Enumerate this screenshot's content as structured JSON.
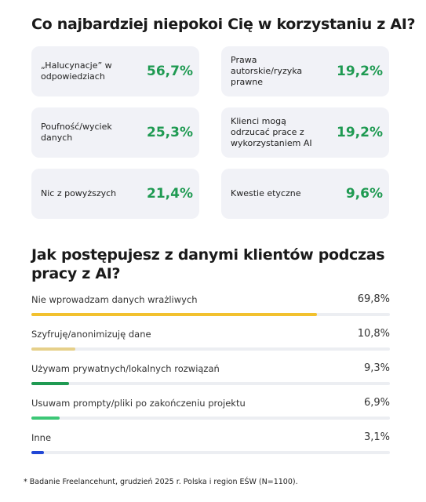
{
  "section1": {
    "title": "Co najbardziej niepokoi Cię w korzystaniu z AI?",
    "cards": [
      {
        "label": "„Halucynacje” w odpowiedziach",
        "value": "56,7%"
      },
      {
        "label": "Prawa autorskie/ryzyka prawne",
        "value": "19,2%"
      },
      {
        "label": "Poufność/wyciek danych",
        "value": "25,3%"
      },
      {
        "label": "Klienci mogą odrzucać prace z wykorzystaniem AI",
        "value": "19,2%"
      },
      {
        "label": "Nic z powyższych",
        "value": "21,4%"
      },
      {
        "label": "Kwestie etyczne",
        "value": "9,6%"
      }
    ]
  },
  "chart_data": {
    "type": "bar",
    "title": "Jak postępujesz z danymi klientów podczas pracy z AI?",
    "categories": [
      "Nie wprowadzam danych wrażliwych",
      "Szyfruję/anonimizuję dane",
      "Używam prywatnych/lokalnych rozwiązań",
      "Usuwam prompty/pliki po zakończeniu projektu",
      "Inne"
    ],
    "values": [
      69.8,
      10.8,
      9.3,
      6.9,
      3.1
    ],
    "value_labels": [
      "69,8%",
      "10,8%",
      "9,3%",
      "6,9%",
      "3,1%"
    ],
    "colors": [
      "#f2c12e",
      "#e6d08a",
      "#1f9a52",
      "#3cc776",
      "#2147d6"
    ],
    "xlim": [
      0,
      100
    ]
  },
  "footnote": "* Badanie Freelancehunt, grudzień 2025 r. Polska i region EŚW (N=1100)."
}
